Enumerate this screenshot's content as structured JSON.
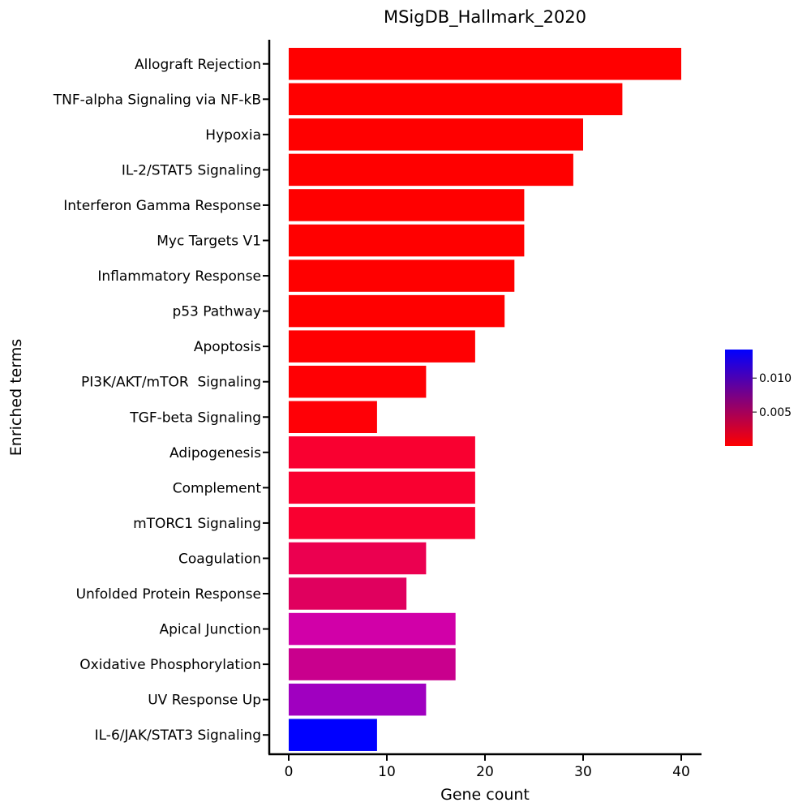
{
  "chart_data": {
    "type": "bar",
    "orientation": "horizontal",
    "title": "MSigDB_Hallmark_2020",
    "xlabel": "Gene count",
    "ylabel": "Enriched terms",
    "xlim": [
      -2,
      42
    ],
    "xticks": [
      0,
      10,
      20,
      30,
      40
    ],
    "grid": false,
    "categories": [
      "Allograft Rejection",
      "TNF-alpha Signaling via NF-kB",
      "Hypoxia",
      "IL-2/STAT5 Signaling",
      "Interferon Gamma Response",
      "Myc Targets V1",
      "Inflammatory Response",
      "p53 Pathway",
      "Apoptosis",
      "PI3K/AKT/mTOR  Signaling",
      "TGF-beta Signaling",
      "Adipogenesis",
      "Complement",
      "mTORC1 Signaling",
      "Coagulation",
      "Unfolded Protein Response",
      "Apical Junction",
      "Oxidative Phosphorylation",
      "UV Response Up",
      "IL-6/JAK/STAT3 Signaling"
    ],
    "values": [
      40,
      34,
      30,
      29,
      24,
      24,
      23,
      22,
      19,
      14,
      9,
      19,
      19,
      19,
      14,
      12,
      17,
      17,
      14,
      9
    ],
    "color_values": [
      1e-05,
      2e-05,
      3e-05,
      4e-05,
      5e-05,
      6e-05,
      7e-05,
      8e-05,
      0.0002,
      0.0003,
      0.0004,
      0.0007,
      0.0008,
      0.0009,
      0.0015,
      0.002,
      0.0035,
      0.0038,
      0.0065,
      0.0138
    ],
    "bar_colors": [
      "#ff0000",
      "#ff0000",
      "#ff0000",
      "#ff0000",
      "#ff0000",
      "#ff0000",
      "#ff0000",
      "#ff0000",
      "#ff0002",
      "#ff0004",
      "#ff0006",
      "#f90030",
      "#f90030",
      "#f90030",
      "#eb0050",
      "#e0005e",
      "#d100a8",
      "#c9008d",
      "#a000c0",
      "#0000ff"
    ],
    "colorbar": {
      "colors": [
        "#ff0000",
        "#0000ff"
      ],
      "range": [
        0,
        0.0142
      ],
      "ticks": [
        0.005,
        0.01
      ],
      "tick_labels": [
        "0.005",
        "0.010"
      ],
      "placement": "right"
    }
  }
}
